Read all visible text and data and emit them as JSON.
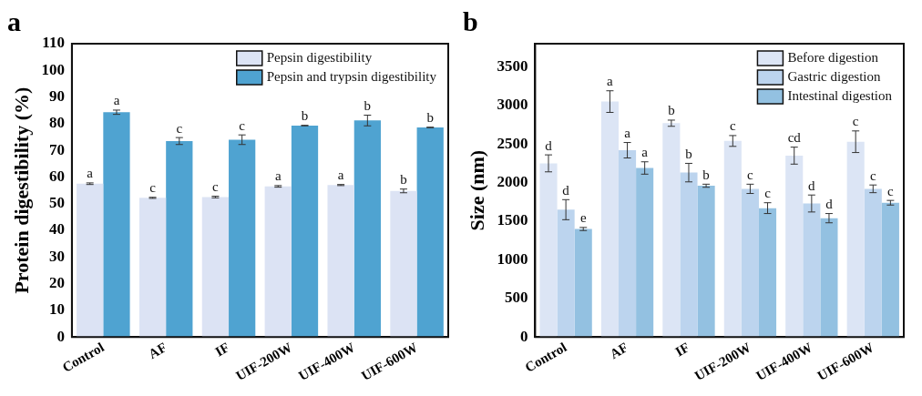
{
  "chart_data": [
    {
      "type": "bar",
      "title": "a",
      "ylabel": "Protein digestibility (%)",
      "categories": [
        "Control",
        "AF",
        "IF",
        "UIF-200W",
        "UIF-400W",
        "UIF-600W"
      ],
      "ylim": [
        0,
        110
      ],
      "yticks": [
        0,
        10,
        20,
        30,
        40,
        50,
        60,
        70,
        80,
        90,
        100,
        110
      ],
      "grid": false,
      "legend": "top right",
      "series": [
        {
          "name": "Pepsin digestibility",
          "color": "#dce3f4",
          "values": [
            57.5,
            52.2,
            52.5,
            56.5,
            57.0,
            54.8
          ],
          "errors": [
            0.3,
            0.2,
            0.3,
            0.3,
            0.2,
            0.7
          ],
          "value_labels": [
            "a",
            "c",
            "c",
            "a",
            "a",
            "b"
          ]
        },
        {
          "name": "Pepsin and trypsin digestibility",
          "color": "#4fa3d1",
          "values": [
            84.3,
            73.5,
            74.0,
            79.3,
            81.2,
            78.6
          ],
          "errors": [
            0.8,
            1.3,
            1.8,
            0.1,
            2.0,
            0.1
          ],
          "value_labels": [
            "a",
            "c",
            "c",
            "b",
            "b",
            "b"
          ]
        }
      ]
    },
    {
      "type": "bar",
      "title": "b",
      "ylabel": "Size (nm)",
      "categories": [
        "Control",
        "AF",
        "IF",
        "UIF-200W",
        "UIF-400W",
        "UIF-600W"
      ],
      "ylim": [
        0,
        3800
      ],
      "yticks": [
        0,
        500,
        1000,
        1500,
        2000,
        2500,
        3000,
        3500
      ],
      "grid": false,
      "legend": "top right",
      "series": [
        {
          "name": "Before digestion",
          "color": "#dce5f5",
          "values": [
            2250,
            3050,
            2770,
            2540,
            2350,
            2530
          ],
          "errors": [
            110,
            140,
            40,
            70,
            110,
            140
          ],
          "value_labels": [
            "d",
            "a",
            "b",
            "c",
            "cd",
            "c"
          ]
        },
        {
          "name": "Gastric digestion",
          "color": "#bcd4ee",
          "values": [
            1650,
            2420,
            2130,
            1920,
            1730,
            1920
          ],
          "errors": [
            130,
            100,
            120,
            60,
            110,
            50
          ],
          "value_labels": [
            "d",
            "a",
            "b",
            "c",
            "d",
            "c"
          ]
        },
        {
          "name": "Intestinal digestion",
          "color": "#93c1e1",
          "values": [
            1400,
            2190,
            1960,
            1670,
            1540,
            1740
          ],
          "errors": [
            20,
            80,
            20,
            70,
            60,
            30
          ],
          "value_labels": [
            "e",
            "a",
            "b",
            "c",
            "d",
            "c"
          ]
        }
      ]
    }
  ]
}
